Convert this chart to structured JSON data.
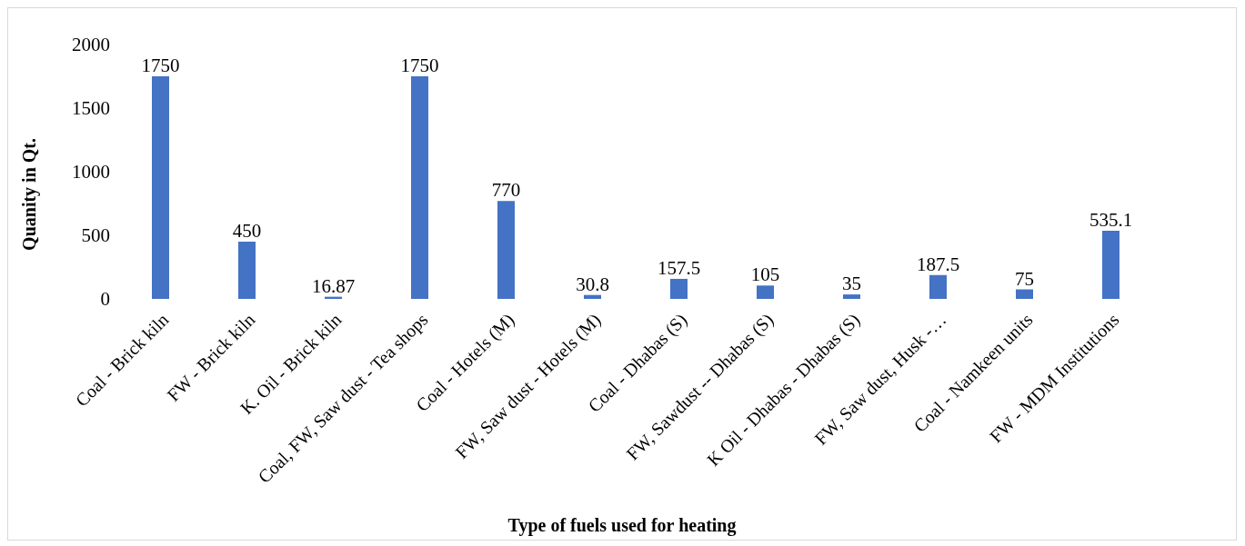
{
  "chart_data": {
    "type": "bar",
    "xlabel": "Type of fuels used for heating",
    "ylabel": "Quanity in Qt.",
    "categories": [
      "Coal - Brick kiln",
      "FW - Brick kiln",
      "K. Oil - Brick kiln",
      "Coal, FW, Saw dust - Tea shops",
      "Coal - Hotels (M)",
      "FW, Saw dust - Hotels (M)",
      "Coal - Dhabas (S)",
      "FW,  Sawdust -- Dhabas (S)",
      "K Oil - Dhabas - Dhabas (S)",
      "FW, Saw dust, Husk -…",
      "Coal - Namkeen units",
      "FW - MDM Institutions"
    ],
    "values": [
      1750,
      450,
      16.87,
      1750,
      770,
      30.8,
      157.5,
      105,
      35,
      187.5,
      75,
      535.1
    ],
    "color": "#4472c4",
    "ylim": [
      0,
      2000
    ],
    "yticks": [
      0,
      500,
      1000,
      1500,
      2000
    ],
    "grid": false,
    "data_labels": true
  }
}
